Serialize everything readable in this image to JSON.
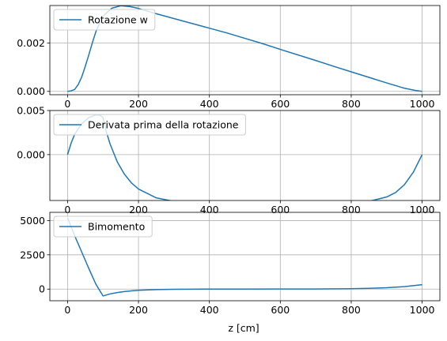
{
  "chart_data": [
    {
      "type": "line",
      "xlim": [
        -50,
        1050
      ],
      "ylim": [
        -0.00014,
        0.00356
      ],
      "xticks": [
        0,
        200,
        400,
        600,
        800,
        1000
      ],
      "yticks": [
        0.0,
        0.002
      ],
      "ytick_labels": [
        "0.000",
        "0.002"
      ],
      "grid": true,
      "legend_position": "upper-left",
      "series": [
        {
          "name": "Rotazione w",
          "color": "#1f77b4",
          "x": [
            0,
            10,
            20,
            30,
            40,
            50,
            60,
            70,
            80,
            90,
            100,
            125,
            150,
            175,
            200,
            250,
            300,
            350,
            400,
            450,
            500,
            550,
            600,
            650,
            700,
            750,
            800,
            850,
            900,
            950,
            980,
            1000
          ],
          "y": [
            0.0,
            2e-05,
            8e-05,
            0.00028,
            0.0006,
            0.00104,
            0.00152,
            0.00202,
            0.00248,
            0.00282,
            0.00312,
            0.00345,
            0.00355,
            0.00352,
            0.00344,
            0.00322,
            0.00302,
            0.00282,
            0.00262,
            0.00242,
            0.0022,
            0.00198,
            0.00174,
            0.00151,
            0.00128,
            0.00104,
            0.00081,
            0.00058,
            0.00035,
            0.00013,
            4e-05,
            0.0
          ]
        }
      ]
    },
    {
      "type": "line",
      "xlim": [
        -50,
        1050
      ],
      "ylim": [
        -0.0052,
        0.005
      ],
      "xticks": [
        0,
        200,
        400,
        600,
        800,
        1000
      ],
      "yticks": [
        0.0,
        0.005
      ],
      "ytick_labels": [
        "0.000",
        "0.005"
      ],
      "grid": true,
      "legend_position": "upper-left",
      "series": [
        {
          "name": "Derivata prima della rotazione",
          "color": "#1f77b4",
          "x": [
            0,
            10,
            20,
            40,
            60,
            80,
            90,
            100,
            110,
            120,
            140,
            160,
            180,
            200,
            250,
            300,
            350,
            400,
            450,
            500,
            550,
            600,
            650,
            700,
            750,
            800,
            850,
            900,
            925,
            950,
            975,
            1000
          ],
          "y": [
            0.0,
            0.0013,
            0.0023,
            0.0035,
            0.0042,
            0.0045,
            0.0045,
            0.0042,
            0.0025,
            0.0012,
            -0.0008,
            -0.0022,
            -0.0032,
            -0.0039,
            -0.0049,
            -0.0053,
            -0.0055,
            -0.0056,
            -0.0056,
            -0.00565,
            -0.00568,
            -0.0057,
            -0.00568,
            -0.00565,
            -0.0056,
            -0.0055,
            -0.0053,
            -0.0048,
            -0.0043,
            -0.0034,
            -0.002,
            0.0
          ]
        }
      ]
    },
    {
      "type": "line",
      "xlim": [
        -50,
        1050
      ],
      "ylim": [
        -850,
        5600
      ],
      "xticks": [
        0,
        200,
        400,
        600,
        800,
        1000
      ],
      "yticks": [
        0,
        2500,
        5000
      ],
      "ytick_labels": [
        "0",
        "2500",
        "5000"
      ],
      "xlabel": "z  [cm]",
      "grid": true,
      "legend_position": "upper-left",
      "series": [
        {
          "name": "Bimomento",
          "color": "#1f77b4",
          "x": [
            0,
            20,
            40,
            60,
            80,
            100,
            120,
            140,
            160,
            180,
            200,
            250,
            300,
            350,
            400,
            500,
            600,
            700,
            800,
            850,
            900,
            950,
            1000
          ],
          "y": [
            5200,
            3900,
            2700,
            1500,
            350,
            -500,
            -350,
            -250,
            -180,
            -130,
            -90,
            -40,
            -15,
            -5,
            0,
            0,
            5,
            10,
            30,
            60,
            100,
            180,
            320
          ]
        }
      ]
    }
  ]
}
